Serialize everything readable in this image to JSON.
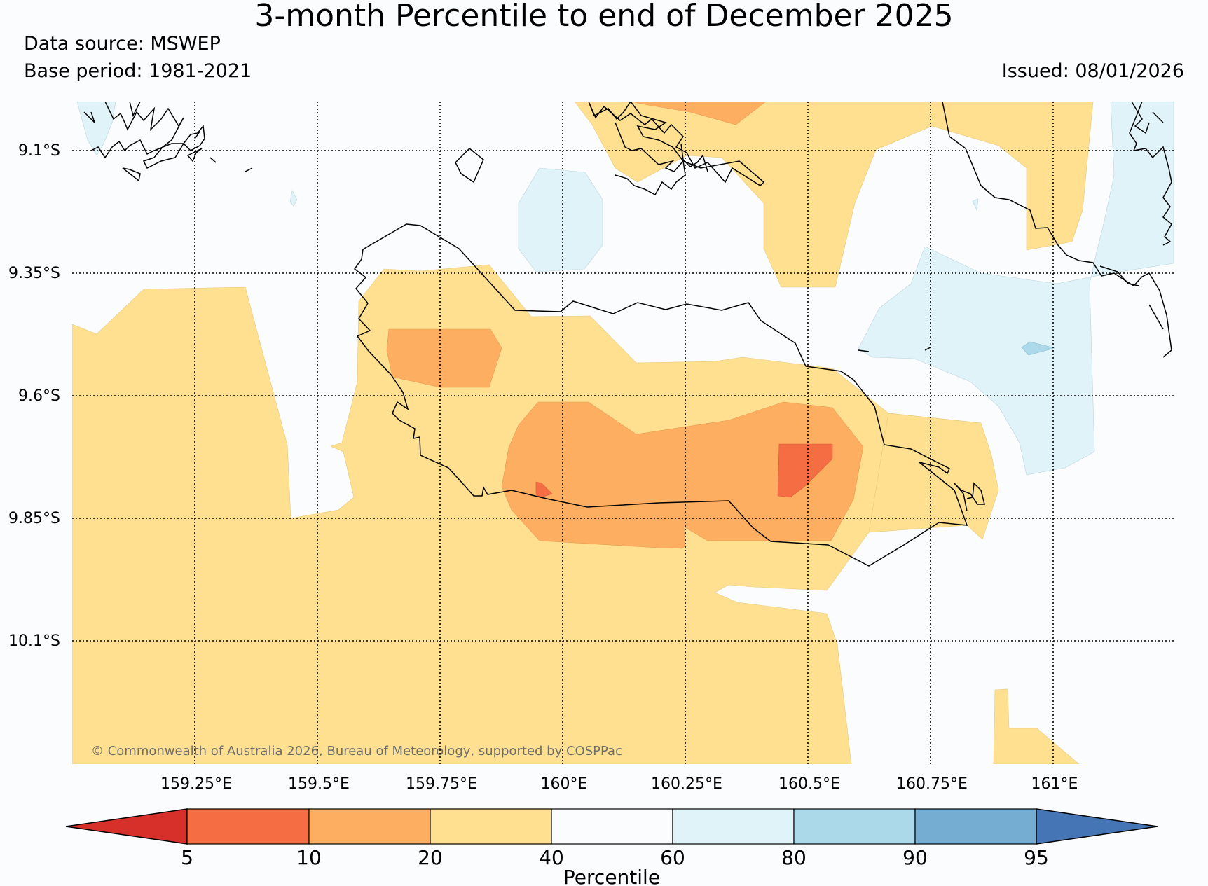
{
  "title": "3-month Percentile to end of December 2025",
  "data_source": "Data source: MSWEP",
  "base_period": "Base period: 1981-2021",
  "issued": "Issued: 08/01/2026",
  "copyright": "© Commonwealth of Australia 2026, Bureau of Meteorology, supported by COSPPac",
  "map": {
    "lat_labels": [
      "9.1°S",
      "9.35°S",
      "9.6°S",
      "9.85°S",
      "10.1°S"
    ],
    "lon_labels": [
      "159.25°E",
      "159.5°E",
      "159.75°E",
      "160°E",
      "160.25°E",
      "160.5°E",
      "160.75°E",
      "161°E"
    ]
  },
  "legend": {
    "label": "Percentile",
    "ticks": [
      "5",
      "10",
      "20",
      "40",
      "60",
      "80",
      "90",
      "95"
    ],
    "colors": [
      "#d7302a",
      "#f46d43",
      "#fdae61",
      "#fee090",
      "#fbfcfe",
      "#e0f3f8",
      "#abd9e9",
      "#74add1",
      "#4575b4"
    ]
  }
}
